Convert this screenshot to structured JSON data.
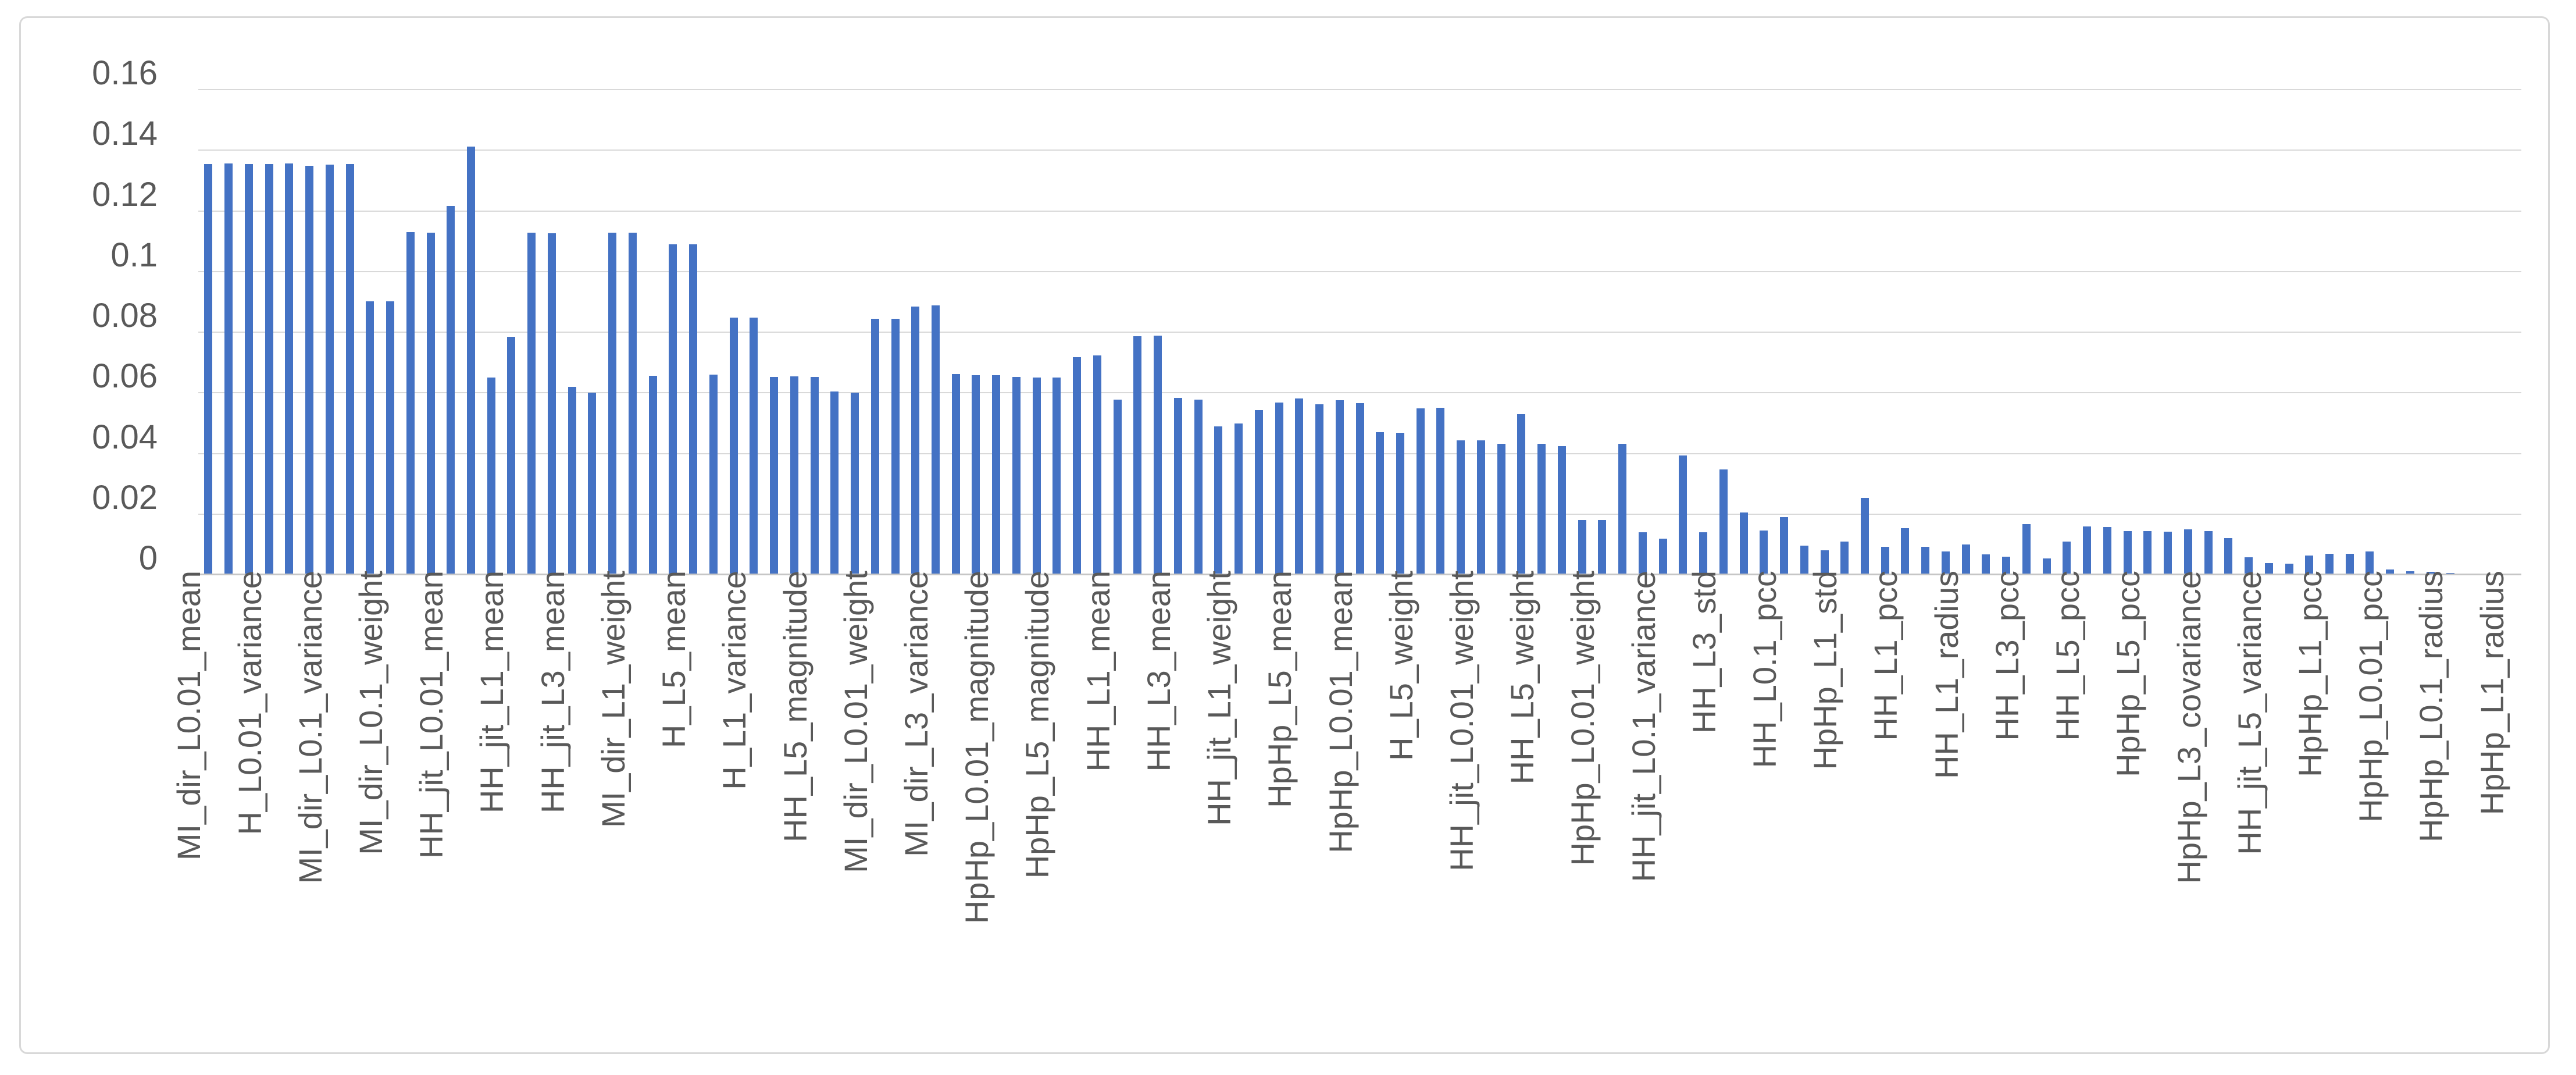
{
  "chart_data": {
    "type": "bar",
    "title": "",
    "xlabel": "",
    "ylabel": "",
    "ylim": [
      0,
      0.16
    ],
    "grid": true,
    "legend_position": "none",
    "y_tick_labels": [
      "0.16",
      "0.14",
      "0.12",
      "0.1",
      "0.08",
      "0.06",
      "0.04",
      "0.02",
      "0"
    ],
    "x_tick_label_every_n_bars": 3,
    "x_tick_labels": [
      "MI_dir_L0.01_mean",
      "H_L0.01_variance",
      "MI_dir_L0.1_variance",
      "MI_dir_L0.1_weight",
      "HH_jit_L0.01_mean",
      "HH_jit_L1_mean",
      "HH_jit_L3_mean",
      "MI_dir_L1_weight",
      "H_L5_mean",
      "H_L1_variance",
      "HH_L5_magnitude",
      "MI_dir_L0.01_weight",
      "MI_dir_L3_variance",
      "HpHp_L0.01_magnitude",
      "HpHp_L5_magnitude",
      "HH_L1_mean",
      "HH_L3_mean",
      "HH_jit_L1_weight",
      "HpHp_L5_mean",
      "HpHp_L0.01_mean",
      "H_L5_weight",
      "HH_jit_L0.01_weight",
      "HH_L5_weight",
      "HpHp_L0.01_weight",
      "HH_jit_L0.1_variance",
      "HH_L3_std",
      "HH_L0.1_pcc",
      "HpHp_L1_std",
      "HH_L1_pcc",
      "HH_L1_radius",
      "HH_L3_pcc",
      "HH_L5_pcc",
      "HpHp_L5_pcc",
      "HpHp_L3_covariance",
      "HH_jit_L5_variance",
      "HpHp_L1_pcc",
      "HpHp_L0.01_pcc",
      "HpHp_L0.1_radius",
      "HpHp_L1_radius"
    ],
    "values": [
      0.1354,
      0.1356,
      0.1354,
      0.1354,
      0.1356,
      0.1349,
      0.1353,
      0.1354,
      0.0902,
      0.0902,
      0.113,
      0.1129,
      0.1217,
      0.1412,
      0.065,
      0.0785,
      0.1128,
      0.1127,
      0.0619,
      0.0601,
      0.1128,
      0.1128,
      0.0656,
      0.1089,
      0.1089,
      0.066,
      0.0848,
      0.0848,
      0.0653,
      0.0655,
      0.0652,
      0.0605,
      0.0601,
      0.0845,
      0.0845,
      0.0885,
      0.0889,
      0.0661,
      0.0659,
      0.0658,
      0.0653,
      0.0651,
      0.065,
      0.0718,
      0.0723,
      0.0577,
      0.0786,
      0.0788,
      0.0583,
      0.0577,
      0.0489,
      0.0498,
      0.0542,
      0.0568,
      0.0581,
      0.0562,
      0.0575,
      0.0566,
      0.0471,
      0.0469,
      0.0548,
      0.0551,
      0.0444,
      0.0444,
      0.0431,
      0.0529,
      0.0431,
      0.0424,
      0.0181,
      0.0181,
      0.0432,
      0.0141,
      0.0119,
      0.0394,
      0.014,
      0.0348,
      0.0205,
      0.0145,
      0.019,
      0.0095,
      0.008,
      0.011,
      0.0253,
      0.0093,
      0.0153,
      0.0093,
      0.0076,
      0.0099,
      0.0067,
      0.006,
      0.0166,
      0.0054,
      0.011,
      0.016,
      0.0157,
      0.0144,
      0.0144,
      0.0142,
      0.0149,
      0.0144,
      0.012,
      0.0058,
      0.0039,
      0.0036,
      0.0064,
      0.0069,
      0.0069,
      0.0076,
      0.0017,
      0.0011,
      0.0009,
      0.0005,
      0.0004,
      0.0002,
      0.0001
    ],
    "colors": {
      "bar": "#4472c4",
      "gridline": "#d9d9d9",
      "axis_line": "#c6c6c6",
      "tick_text": "#595959",
      "frame_border": "#d8d8d8",
      "background": "#ffffff"
    }
  }
}
